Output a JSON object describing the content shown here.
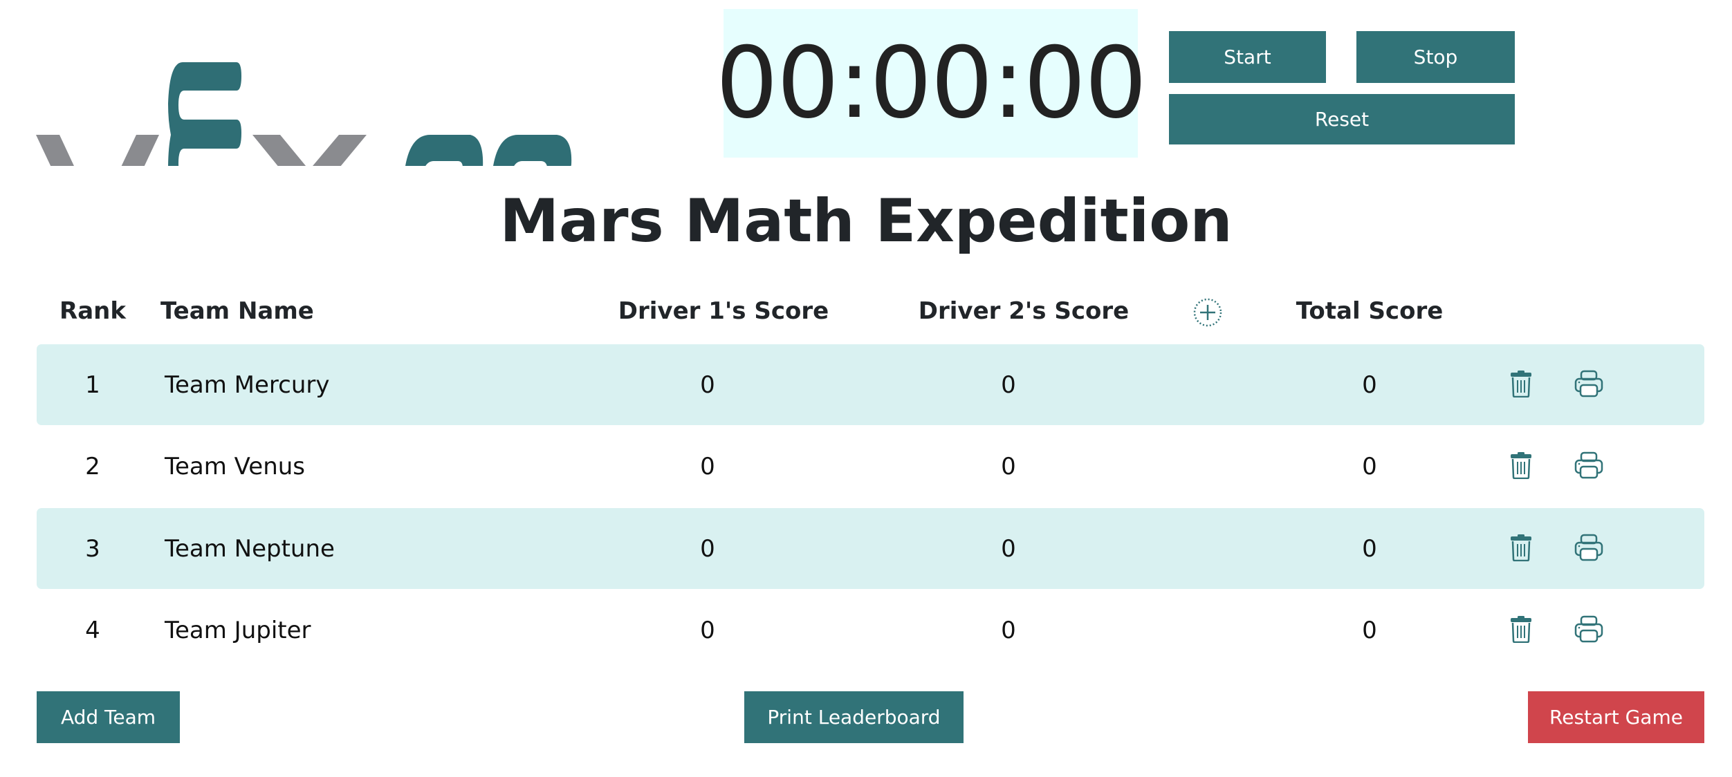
{
  "logo": {
    "text": "VEX GO",
    "colors": {
      "gray": "#8a8b8f",
      "teal": "#2f6e75"
    }
  },
  "timer": {
    "display": "00:00:00",
    "start_label": "Start",
    "stop_label": "Stop",
    "reset_label": "Reset"
  },
  "title": "Mars Math Expedition",
  "table": {
    "headers": {
      "rank": "Rank",
      "team_name": "Team Name",
      "driver1": "Driver 1's Score",
      "driver2": "Driver 2's Score",
      "add_column_icon": "plus-circle-icon",
      "total": "Total Score"
    },
    "rows": [
      {
        "rank": "1",
        "team": "Team Mercury",
        "driver1": "0",
        "driver2": "0",
        "total": "0"
      },
      {
        "rank": "2",
        "team": "Team Venus",
        "driver1": "0",
        "driver2": "0",
        "total": "0"
      },
      {
        "rank": "3",
        "team": "Team Neptune",
        "driver1": "0",
        "driver2": "0",
        "total": "0"
      },
      {
        "rank": "4",
        "team": "Team Jupiter",
        "driver1": "0",
        "driver2": "0",
        "total": "0"
      }
    ],
    "row_icons": [
      "trash-icon",
      "printer-icon"
    ]
  },
  "footer": {
    "add_team_label": "Add Team",
    "print_leaderboard_label": "Print Leaderboard",
    "restart_label": "Restart Game"
  },
  "colors": {
    "accent": "#317378",
    "row_shade": "#d9f1f1",
    "timer_bg": "#e6fefe",
    "danger": "#d0454c"
  }
}
